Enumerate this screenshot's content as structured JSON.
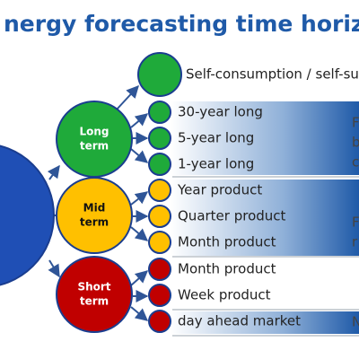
{
  "header": {
    "title": "nergy forecasting time horizo"
  },
  "nodes": {
    "top": "Self-consumption / self-su",
    "long_term": {
      "line1": "Long",
      "line2": "term",
      "items": [
        "30-year long",
        "5-year long",
        "1-year long"
      ]
    },
    "mid_term": {
      "line1": "Mid",
      "line2": "term",
      "items": [
        "Year product",
        "Quarter product",
        "Month product"
      ]
    },
    "short_term": {
      "line1": "Short",
      "line2": "term",
      "items": [
        "Month product",
        "Week product",
        "day ahead market"
      ]
    }
  },
  "side_notes": {
    "long": [
      "F",
      "b",
      "c"
    ],
    "mid": [
      "F",
      "r"
    ],
    "short": [
      "N"
    ]
  }
}
